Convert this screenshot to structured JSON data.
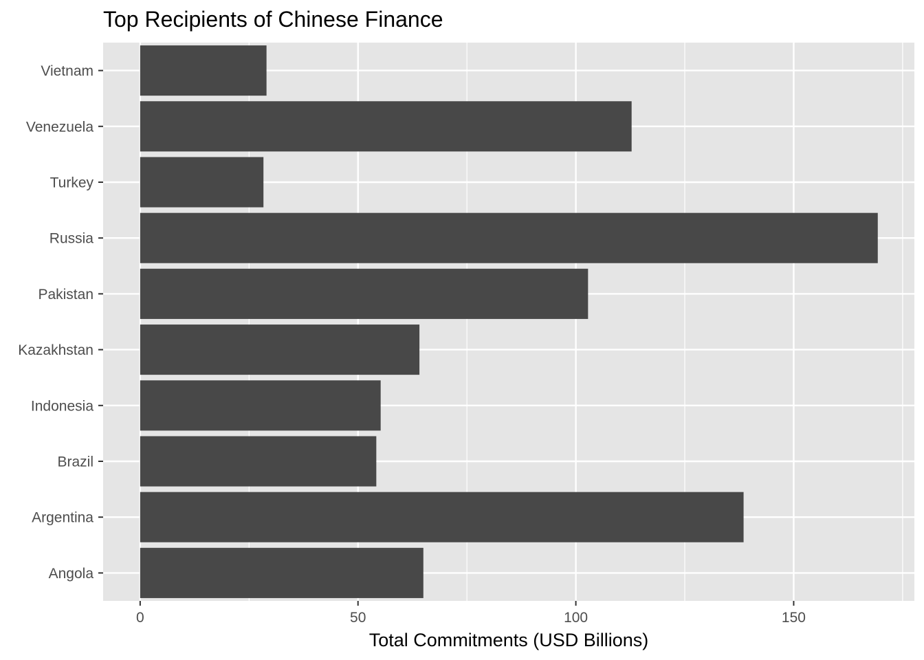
{
  "chart_data": {
    "type": "bar",
    "orientation": "horizontal",
    "title": "Top Recipients of Chinese Finance",
    "xlabel": "Total Commitments (USD Billions)",
    "ylabel": "",
    "categories": [
      "Angola",
      "Argentina",
      "Brazil",
      "Indonesia",
      "Kazakhstan",
      "Pakistan",
      "Russia",
      "Turkey",
      "Venezuela",
      "Vietnam"
    ],
    "values": [
      65,
      138.5,
      54.2,
      55.2,
      64.1,
      102.8,
      169.3,
      28.3,
      112.8,
      29
    ],
    "xlim": [
      -8.5,
      177.7
    ],
    "x_ticks": [
      0,
      50,
      100,
      150
    ],
    "x_minor_ticks": [
      25,
      75,
      125,
      175
    ],
    "grid": true,
    "legend": "none",
    "colors": {
      "panel_background": "#e5e5e5",
      "grid": "#ffffff",
      "bar_fill": "#484848",
      "tick_text": "#4d4d4d",
      "tick_mark": "#333333"
    }
  }
}
